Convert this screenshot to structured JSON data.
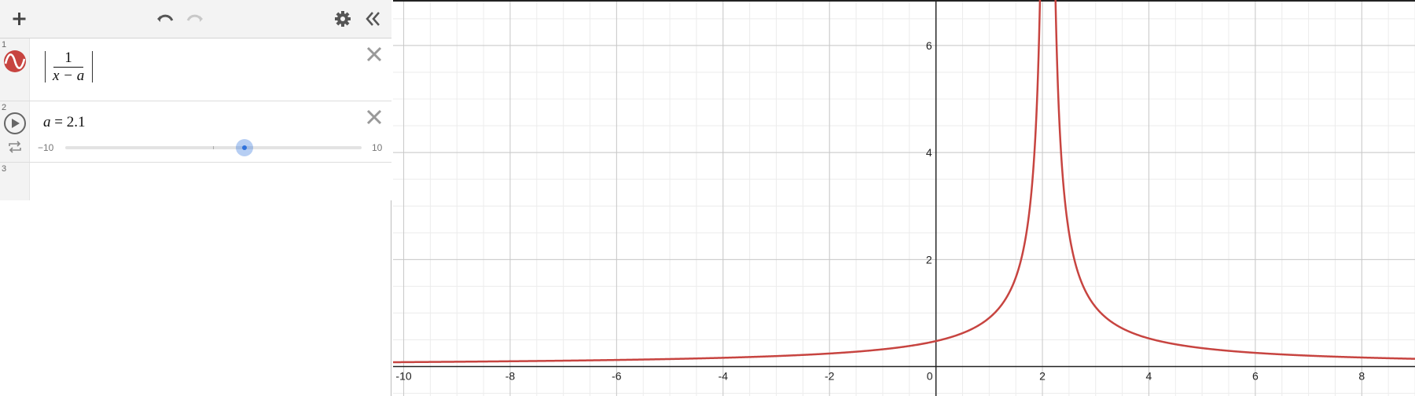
{
  "toolbar": {
    "icons": [
      "plus-icon",
      "undo-icon",
      "redo-icon",
      "gear-icon",
      "collapse-icon"
    ]
  },
  "expressions": [
    {
      "index": "1",
      "icon": "graph-color-icon",
      "latex": "|1/(x-a)|",
      "numerator": "1",
      "denominator": "x − a",
      "color": "#c74440"
    },
    {
      "index": "2",
      "icon": "play-icon",
      "secondary_icon": "loop-icon",
      "variable": "a",
      "equals": "=",
      "value": "2.1",
      "slider": {
        "min": -10,
        "max": 10,
        "value": 2.1,
        "min_label": "−10",
        "max_label": "10"
      }
    },
    {
      "index": "3"
    }
  ],
  "graph": {
    "curve_color": "#c74440",
    "x_ticks": [
      "-10",
      "-8",
      "-6",
      "-4",
      "-2",
      "0",
      "2",
      "4",
      "6",
      "8"
    ],
    "y_ticks": [
      "2",
      "4",
      "6"
    ],
    "xlim": [
      -10.2,
      9.0
    ],
    "ylim": [
      -0.55,
      6.85
    ]
  }
}
